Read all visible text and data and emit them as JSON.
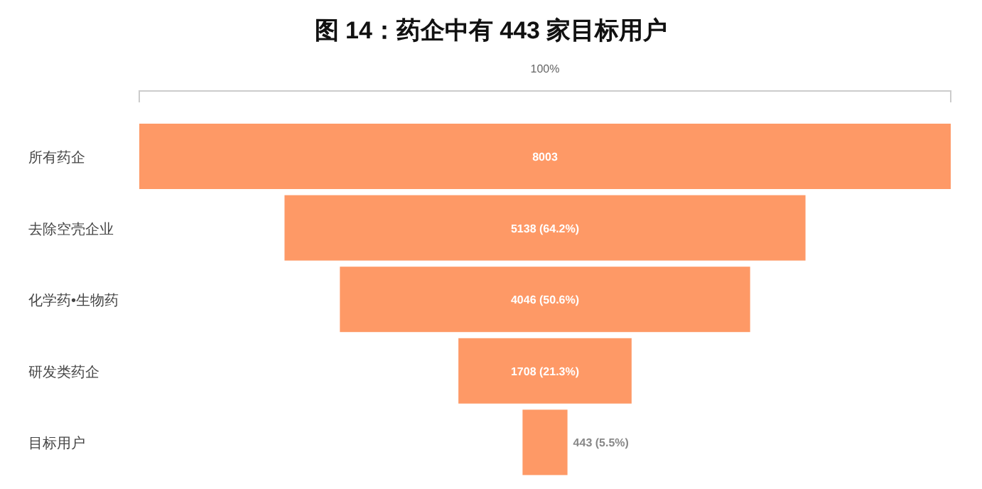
{
  "chart_data": {
    "type": "other",
    "title": "图 14：药企中有 443 家目标用户",
    "annotations": [
      "100%"
    ],
    "categories": [
      "所有药企",
      "去除空壳企业",
      "化学药•生物药",
      "研发类药企",
      "目标用户"
    ],
    "values": [
      8003,
      5138,
      4046,
      1708,
      443
    ],
    "value_labels": [
      "8003",
      "5138 (64.2%)",
      "4046 (50.6%)",
      "1708 (21.3%)",
      "443 (5.5%)"
    ],
    "color": "#fe9966"
  }
}
